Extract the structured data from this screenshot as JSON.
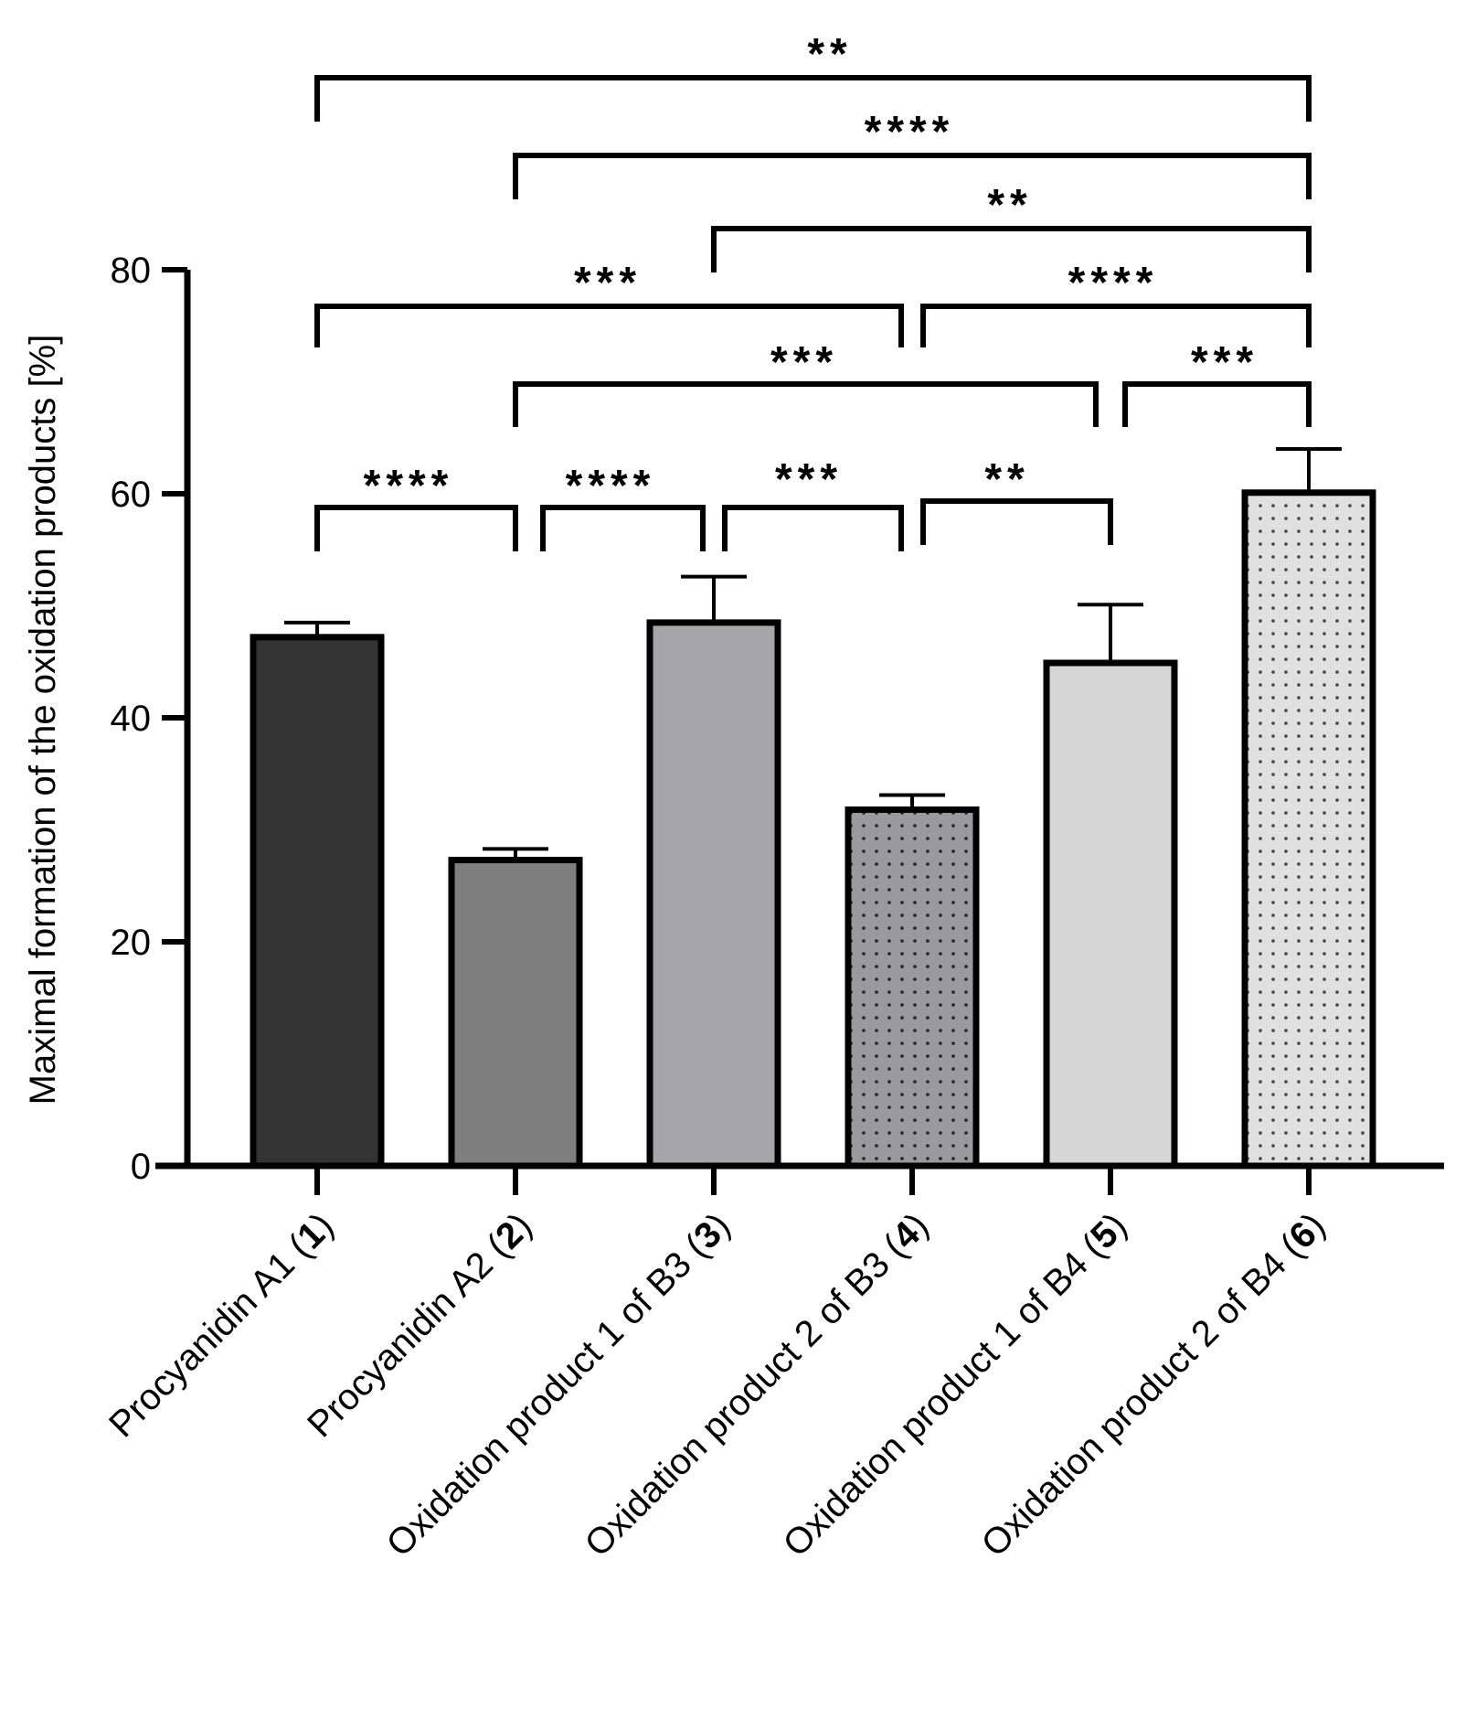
{
  "chart_data": {
    "type": "bar",
    "title": "",
    "xlabel": "",
    "ylabel": "Maximal formation of the oxidation products [%]",
    "ylim": [
      0,
      80
    ],
    "yticks": [
      0,
      20,
      40,
      60,
      80
    ],
    "grid": false,
    "legend": "none",
    "categories": [
      {
        "name": "Procyanidin A1",
        "num": "1"
      },
      {
        "name": "Procyanidin A2",
        "num": "2"
      },
      {
        "name": "Oxidation product 1 of B3",
        "num": "3"
      },
      {
        "name": "Oxidation product 2 of B3",
        "num": "4"
      },
      {
        "name": "Oxidation product 1 of B4",
        "num": "5"
      },
      {
        "name": "Oxidation product 2 of B4",
        "num": "6"
      }
    ],
    "values": [
      47.2,
      27.3,
      48.5,
      31.8,
      44.9,
      60.1
    ],
    "errors": [
      1.3,
      1.0,
      4.1,
      1.3,
      5.2,
      3.9
    ],
    "bar_fills": [
      "#333333",
      "#7f7f7f",
      "#a6a6a9",
      "#9a9a9e",
      "#d6d6d6",
      "#e0e0e0"
    ],
    "bar_dotted": [
      false,
      false,
      false,
      true,
      false,
      true
    ],
    "significance": [
      {
        "from": 1,
        "to": 6,
        "label": "**"
      },
      {
        "from": 2,
        "to": 6,
        "label": "****"
      },
      {
        "from": 3,
        "to": 6,
        "label": "**"
      },
      {
        "from": 1,
        "to": 4,
        "label": "***"
      },
      {
        "from": 4,
        "to": 6,
        "label": "****"
      },
      {
        "from": 2,
        "to": 5,
        "label": "***"
      },
      {
        "from": 5,
        "to": 6,
        "label": "***"
      },
      {
        "from": 1,
        "to": 2,
        "label": "****"
      },
      {
        "from": 2,
        "to": 3,
        "label": "****"
      },
      {
        "from": 3,
        "to": 4,
        "label": "***"
      },
      {
        "from": 4,
        "to": 5,
        "label": "**"
      }
    ]
  }
}
